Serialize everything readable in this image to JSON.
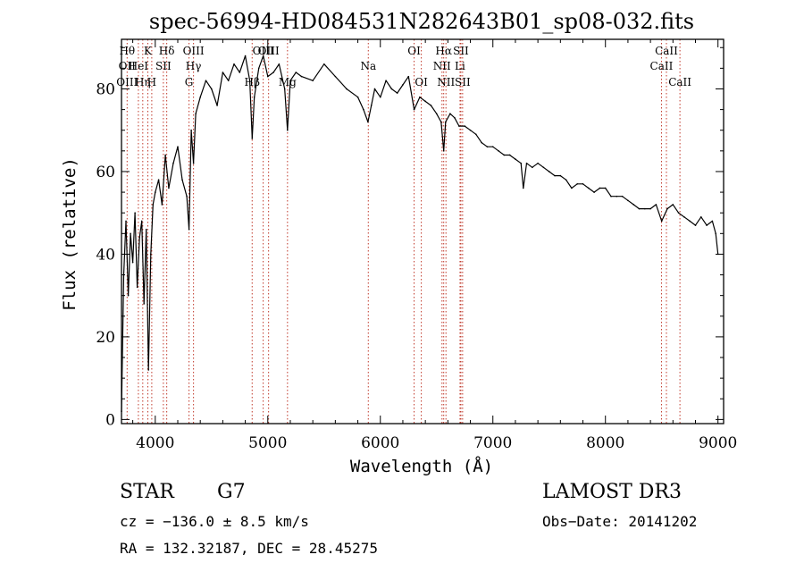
{
  "chart_data": {
    "type": "line",
    "title": "spec-56994-HD084531N282643B01_sp08-032.fits",
    "xlabel": "Wavelength (Å)",
    "ylabel": "Flux (relative)",
    "xlim": [
      3700,
      9050
    ],
    "ylim": [
      -1,
      92
    ],
    "x_ticks": [
      4000,
      5000,
      6000,
      7000,
      8000,
      9000
    ],
    "y_ticks": [
      0,
      20,
      40,
      60,
      80
    ],
    "x_tick_labels": [
      "4000",
      "5000",
      "6000",
      "7000",
      "8000",
      "9000"
    ],
    "y_tick_labels": [
      "0",
      "20",
      "40",
      "60",
      "80"
    ],
    "series": [
      {
        "name": "spectrum",
        "x": [
          3700,
          3720,
          3740,
          3760,
          3780,
          3800,
          3820,
          3840,
          3860,
          3880,
          3900,
          3920,
          3940,
          3960,
          3980,
          4000,
          4030,
          4060,
          4090,
          4120,
          4160,
          4200,
          4240,
          4280,
          4300,
          4320,
          4340,
          4360,
          4400,
          4450,
          4500,
          4550,
          4600,
          4650,
          4700,
          4750,
          4800,
          4840,
          4861,
          4880,
          4920,
          4960,
          5000,
          5050,
          5100,
          5150,
          5175,
          5200,
          5250,
          5300,
          5400,
          5500,
          5600,
          5700,
          5800,
          5850,
          5890,
          5920,
          5950,
          6000,
          6050,
          6100,
          6150,
          6200,
          6250,
          6300,
          6350,
          6400,
          6450,
          6500,
          6540,
          6563,
          6580,
          6620,
          6660,
          6700,
          6750,
          6800,
          6850,
          6900,
          6950,
          7000,
          7050,
          7100,
          7150,
          7200,
          7250,
          7270,
          7300,
          7350,
          7400,
          7450,
          7500,
          7550,
          7600,
          7650,
          7700,
          7750,
          7800,
          7850,
          7900,
          7950,
          8000,
          8050,
          8100,
          8150,
          8200,
          8250,
          8300,
          8350,
          8400,
          8450,
          8500,
          8550,
          8600,
          8650,
          8700,
          8750,
          8800,
          8850,
          8900,
          8950,
          8980,
          9000
        ],
        "y": [
          2,
          35,
          48,
          30,
          45,
          38,
          50,
          32,
          44,
          48,
          28,
          46,
          12,
          40,
          52,
          55,
          58,
          52,
          64,
          56,
          62,
          66,
          58,
          54,
          46,
          70,
          62,
          74,
          78,
          82,
          80,
          76,
          84,
          82,
          86,
          84,
          88,
          82,
          68,
          78,
          85,
          88,
          83,
          84,
          86,
          80,
          70,
          82,
          84,
          83,
          82,
          86,
          83,
          80,
          78,
          75,
          72,
          76,
          80,
          78,
          82,
          80,
          79,
          81,
          83,
          75,
          78,
          77,
          76,
          74,
          72,
          65,
          72,
          74,
          73,
          71,
          71,
          70,
          69,
          67,
          66,
          66,
          65,
          64,
          64,
          63,
          62,
          56,
          62,
          61,
          62,
          61,
          60,
          59,
          59,
          58,
          56,
          57,
          57,
          56,
          55,
          56,
          56,
          54,
          54,
          54,
          53,
          52,
          51,
          51,
          51,
          52,
          48,
          51,
          52,
          50,
          49,
          48,
          47,
          49,
          47,
          48,
          45,
          40
        ]
      }
    ],
    "line_labels": [
      {
        "wavelength": 3750,
        "rows": [
          "Hθ",
          "OII",
          "OIII"
        ]
      },
      {
        "wavelength": 3850,
        "rows": [
          "",
          "HeI",
          ""
        ]
      },
      {
        "wavelength": 3889,
        "rows": [
          "",
          "",
          "Hη"
        ]
      },
      {
        "wavelength": 3934,
        "rows": [
          "K",
          "",
          ""
        ]
      },
      {
        "wavelength": 3969,
        "rows": [
          "",
          "",
          "H"
        ]
      },
      {
        "wavelength": 4072,
        "rows": [
          "",
          "SII",
          ""
        ]
      },
      {
        "wavelength": 4102,
        "rows": [
          "Hδ",
          "",
          ""
        ]
      },
      {
        "wavelength": 4300,
        "rows": [
          "",
          "",
          "G"
        ]
      },
      {
        "wavelength": 4340,
        "rows": [
          "OIII",
          "Hγ",
          ""
        ]
      },
      {
        "wavelength": 4861,
        "rows": [
          "",
          "",
          "Hβ"
        ]
      },
      {
        "wavelength": 4959,
        "rows": [
          "OIII",
          "",
          ""
        ]
      },
      {
        "wavelength": 5007,
        "rows": [
          "OIII",
          "",
          ""
        ]
      },
      {
        "wavelength": 5175,
        "rows": [
          "",
          "",
          "Mg"
        ]
      },
      {
        "wavelength": 5893,
        "rows": [
          "",
          "Na",
          ""
        ]
      },
      {
        "wavelength": 6300,
        "rows": [
          "OI",
          "",
          ""
        ]
      },
      {
        "wavelength": 6364,
        "rows": [
          "",
          "",
          "OI"
        ]
      },
      {
        "wavelength": 6548,
        "rows": [
          "",
          "NII",
          ""
        ]
      },
      {
        "wavelength": 6563,
        "rows": [
          "Hα",
          "",
          ""
        ]
      },
      {
        "wavelength": 6583,
        "rows": [
          "",
          "",
          "NII"
        ]
      },
      {
        "wavelength": 6708,
        "rows": [
          "",
          "Li",
          ""
        ]
      },
      {
        "wavelength": 6716,
        "rows": [
          "SII",
          "",
          ""
        ]
      },
      {
        "wavelength": 6731,
        "rows": [
          "",
          "",
          "SII"
        ]
      },
      {
        "wavelength": 8498,
        "rows": [
          "",
          "CaII",
          ""
        ]
      },
      {
        "wavelength": 8542,
        "rows": [
          "CaII",
          "",
          ""
        ]
      },
      {
        "wavelength": 8662,
        "rows": [
          "",
          "",
          "CaII"
        ]
      }
    ],
    "colors": {
      "spectrum": "#000000",
      "line_markers": "#c0392b",
      "axes": "#000000"
    }
  },
  "info": {
    "object_class": "STAR",
    "subclass": "G7",
    "survey": "LAMOST DR3",
    "cz": "cz = −136.0 ± 8.5 km/s",
    "obs_date": "Obs−Date: 20141202",
    "coords": "RA = 132.32187, DEC =  28.45275"
  }
}
